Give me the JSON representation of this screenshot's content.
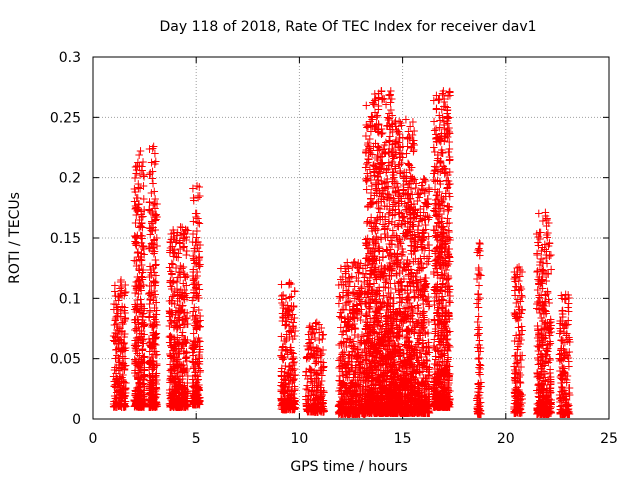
{
  "chart_data": {
    "type": "scatter",
    "title": "Day 118 of 2018, Rate Of TEC Index for receiver dav1",
    "xlabel": "GPS time / hours",
    "ylabel": "ROTI / TECUs",
    "xlim": [
      0,
      25
    ],
    "ylim": [
      0,
      0.3
    ],
    "xticks": [
      0,
      5,
      10,
      15,
      20,
      25
    ],
    "xtick_labels": [
      "0",
      "5",
      "10",
      "15",
      "20",
      "25"
    ],
    "yticks": [
      0,
      0.05,
      0.1,
      0.15,
      0.2,
      0.25,
      0.3
    ],
    "ytick_labels": [
      "0",
      "0.05",
      "0.1",
      "0.15",
      "0.2",
      "0.25",
      "0.3"
    ],
    "grid": true,
    "marker": "+",
    "color": "#ff0000",
    "clusters": [
      {
        "x": [
          1.0,
          1.6
        ],
        "y": [
          0.01,
          0.115
        ]
      },
      {
        "x": [
          2.0,
          2.5
        ],
        "y": [
          0.01,
          0.222
        ]
      },
      {
        "x": [
          2.7,
          3.1
        ],
        "y": [
          0.01,
          0.226
        ]
      },
      {
        "x": [
          3.7,
          4.6
        ],
        "y": [
          0.01,
          0.159
        ]
      },
      {
        "x": [
          4.8,
          5.2
        ],
        "y": [
          0.012,
          0.193
        ]
      },
      {
        "x": [
          9.1,
          9.8
        ],
        "y": [
          0.008,
          0.113
        ]
      },
      {
        "x": [
          10.3,
          11.2
        ],
        "y": [
          0.006,
          0.08
        ]
      },
      {
        "x": [
          11.9,
          13.2
        ],
        "y": [
          0.004,
          0.13
        ]
      },
      {
        "x": [
          13.2,
          14.5
        ],
        "y": [
          0.005,
          0.272
        ]
      },
      {
        "x": [
          14.5,
          15.6
        ],
        "y": [
          0.005,
          0.248
        ]
      },
      {
        "x": [
          15.6,
          16.3
        ],
        "y": [
          0.005,
          0.199
        ]
      },
      {
        "x": [
          16.5,
          17.3
        ],
        "y": [
          0.01,
          0.272
        ]
      },
      {
        "x": [
          18.6,
          18.8
        ],
        "y": [
          0.004,
          0.146
        ]
      },
      {
        "x": [
          20.4,
          20.8
        ],
        "y": [
          0.005,
          0.126
        ]
      },
      {
        "x": [
          21.5,
          22.2
        ],
        "y": [
          0.004,
          0.171
        ]
      },
      {
        "x": [
          22.6,
          23.1
        ],
        "y": [
          0.004,
          0.103
        ]
      }
    ]
  }
}
